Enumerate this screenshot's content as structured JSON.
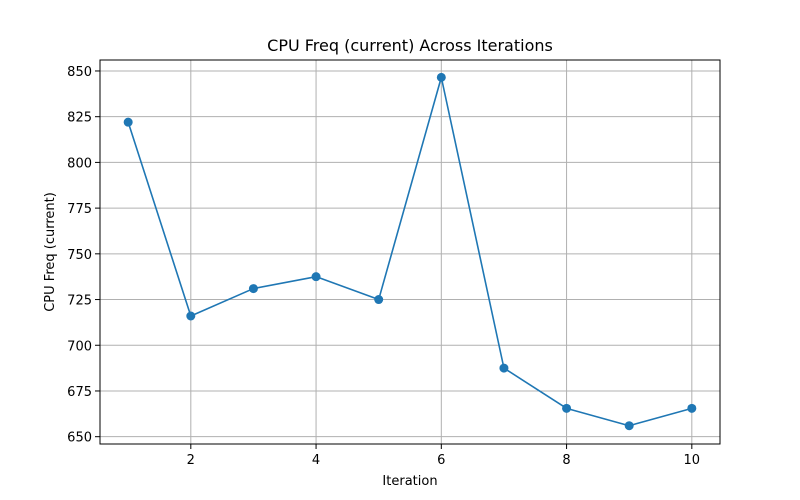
{
  "chart_data": {
    "type": "line",
    "title": "CPU Freq (current) Across Iterations",
    "xlabel": "Iteration",
    "ylabel": "CPU Freq (current)",
    "xlim": [
      0.55,
      10.45
    ],
    "ylim": [
      646,
      856
    ],
    "xticks": [
      2,
      4,
      6,
      8,
      10
    ],
    "yticks": [
      650,
      675,
      700,
      725,
      750,
      775,
      800,
      825,
      850
    ],
    "grid": true,
    "series": [
      {
        "color": "#1f77b4",
        "marker": "circle",
        "x": [
          1,
          2,
          3,
          4,
          5,
          6,
          7,
          8,
          9,
          10
        ],
        "y": [
          822,
          716,
          731,
          737.5,
          725,
          846.5,
          687.5,
          665.5,
          656,
          665.5
        ]
      }
    ]
  }
}
